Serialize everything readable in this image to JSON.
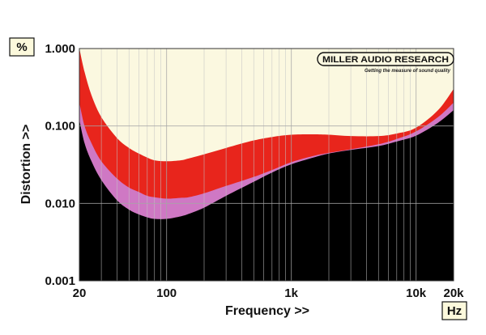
{
  "chart_data": {
    "type": "area",
    "xlabel": "Frequency >>",
    "ylabel": "Distortion >>",
    "x_unit": "Hz",
    "y_unit": "%",
    "x_scale": "log",
    "y_scale": "log",
    "xlim": [
      20,
      20000
    ],
    "ylim": [
      0.001,
      1.0
    ],
    "x_ticks": [
      {
        "value": 20,
        "label": "20"
      },
      {
        "value": 100,
        "label": "100"
      },
      {
        "value": 1000,
        "label": "1k"
      },
      {
        "value": 10000,
        "label": "10k"
      },
      {
        "value": 20000,
        "label": "20k"
      }
    ],
    "y_ticks": [
      {
        "value": 0.001,
        "label": "0.001"
      },
      {
        "value": 0.01,
        "label": "0.010"
      },
      {
        "value": 0.1,
        "label": "0.100"
      },
      {
        "value": 1.0,
        "label": "1.000"
      }
    ],
    "grid": true,
    "background_color": "#fbf8e0",
    "series": [
      {
        "color": "#e8251c",
        "x": [
          20,
          22,
          25,
          30,
          40,
          50,
          60,
          70,
          80,
          100,
          130,
          150,
          200,
          300,
          500,
          700,
          1000,
          1500,
          2000,
          3000,
          5000,
          7000,
          10000,
          15000,
          20000
        ],
        "y": [
          1.0,
          0.5,
          0.25,
          0.13,
          0.07,
          0.052,
          0.044,
          0.039,
          0.036,
          0.035,
          0.036,
          0.038,
          0.043,
          0.052,
          0.065,
          0.072,
          0.077,
          0.078,
          0.077,
          0.074,
          0.074,
          0.08,
          0.095,
          0.16,
          0.3
        ]
      },
      {
        "color": "#cf78c4",
        "x": [
          20,
          22,
          25,
          30,
          40,
          50,
          60,
          70,
          80,
          100,
          130,
          150,
          200,
          300,
          500,
          700,
          1000,
          1500,
          2000,
          3000,
          5000,
          7000,
          10000,
          15000,
          20000
        ],
        "y": [
          0.2,
          0.1,
          0.06,
          0.035,
          0.021,
          0.016,
          0.014,
          0.0125,
          0.012,
          0.0115,
          0.0118,
          0.012,
          0.0135,
          0.0168,
          0.022,
          0.027,
          0.034,
          0.041,
          0.045,
          0.05,
          0.058,
          0.068,
          0.085,
          0.13,
          0.2
        ]
      },
      {
        "color": "#000000",
        "x": [
          20,
          22,
          25,
          30,
          40,
          50,
          60,
          70,
          80,
          100,
          130,
          150,
          200,
          300,
          500,
          700,
          1000,
          1500,
          2000,
          3000,
          5000,
          7000,
          10000,
          15000,
          20000
        ],
        "y": [
          0.12,
          0.06,
          0.035,
          0.02,
          0.011,
          0.0083,
          0.0072,
          0.0066,
          0.0063,
          0.0063,
          0.0068,
          0.0073,
          0.0088,
          0.0125,
          0.019,
          0.025,
          0.032,
          0.039,
          0.044,
          0.049,
          0.055,
          0.063,
          0.075,
          0.11,
          0.16
        ]
      }
    ]
  },
  "logo": {
    "name": "MILLER AUDIO RESEARCH",
    "tagline": "Getting the measure of sound quality"
  }
}
